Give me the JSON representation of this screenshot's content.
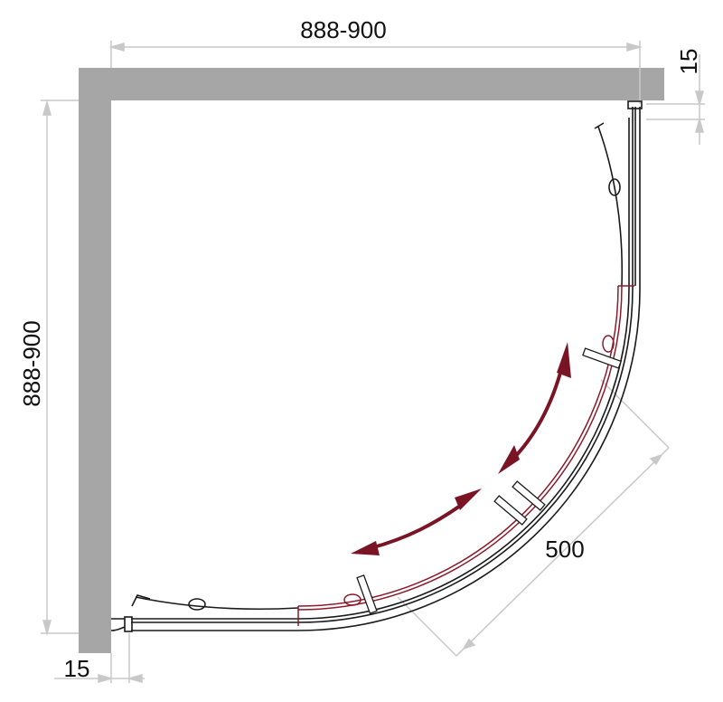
{
  "dimensions": {
    "top_width": "888-900",
    "left_height": "888-900",
    "right_offset": "15",
    "bottom_offset": "15",
    "door_width": "500"
  },
  "colors": {
    "wall": "#a6a6a6",
    "dimension_line": "#c8c8c8",
    "frame": "#1a1a1a",
    "sliding_door": "#8b1a2b",
    "arrow": "#7a1424"
  }
}
